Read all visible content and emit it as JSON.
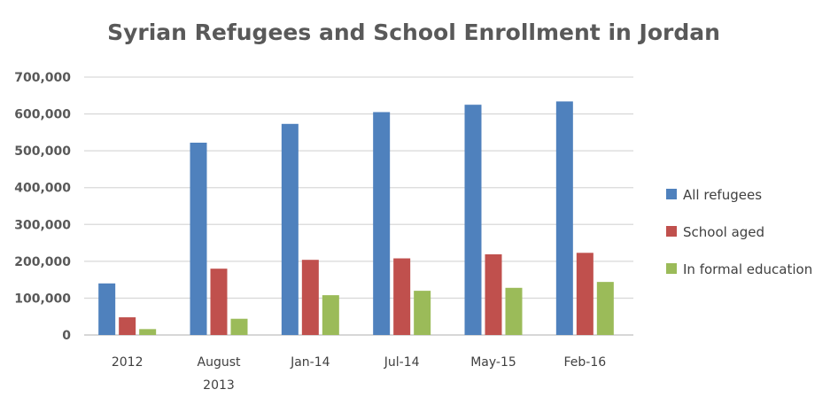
{
  "chart_data": {
    "type": "bar",
    "title": "Syrian Refugees and School Enrollment in Jordan",
    "categories": [
      [
        "2012"
      ],
      [
        "August",
        "2013"
      ],
      [
        "Jan-14"
      ],
      [
        "Jul-14"
      ],
      [
        "May-15"
      ],
      [
        "Feb-16"
      ]
    ],
    "series": [
      {
        "name": "All refugees",
        "color": "#4f81bd",
        "values": [
          140000,
          522000,
          573000,
          605000,
          625000,
          634000
        ]
      },
      {
        "name": "School aged",
        "color": "#c0504d",
        "values": [
          48000,
          180000,
          204000,
          208000,
          219000,
          223000
        ]
      },
      {
        "name": "In formal education",
        "color": "#9bbb59",
        "values": [
          16000,
          44000,
          108000,
          120000,
          128000,
          144000
        ]
      }
    ],
    "yticks": [
      "0",
      "100,000",
      "200,000",
      "300,000",
      "400,000",
      "500,000",
      "600,000",
      "700,000"
    ],
    "ylim": [
      0,
      700000
    ],
    "xlabel": "",
    "ylabel": "",
    "grid": true,
    "legend": "right"
  }
}
